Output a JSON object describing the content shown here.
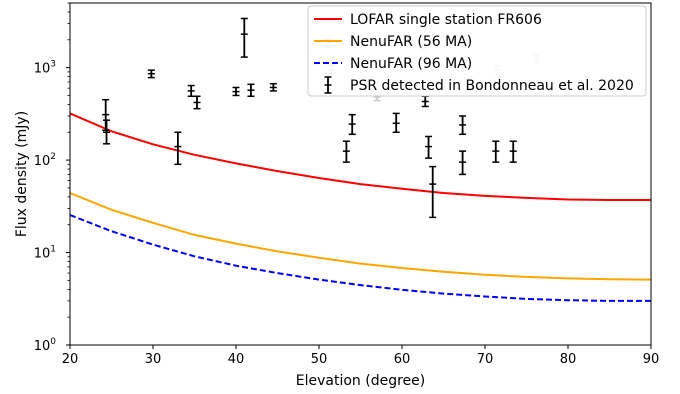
{
  "chart_data": {
    "type": "line",
    "xlabel": "Elevation (degree)",
    "ylabel": "Flux density (mJy)",
    "xlim": [
      20,
      90
    ],
    "ylim": [
      1,
      5000
    ],
    "yscale": "log",
    "x_ticks": [
      "20",
      "30",
      "40",
      "50",
      "60",
      "70",
      "80",
      "90"
    ],
    "y_ticks": [
      {
        "base": "10",
        "exp": "0",
        "value": 1
      },
      {
        "base": "10",
        "exp": "1",
        "value": 10
      },
      {
        "base": "10",
        "exp": "2",
        "value": 100
      },
      {
        "base": "10",
        "exp": "3",
        "value": 1000
      }
    ],
    "legend_position": "top-right",
    "series": [
      {
        "name": "LOFAR single station FR606",
        "color": "#ff0000",
        "style": "solid",
        "x": [
          20,
          25,
          30,
          35,
          40,
          45,
          50,
          55,
          60,
          65,
          70,
          75,
          80,
          85,
          90
        ],
        "y": [
          320,
          205,
          148,
          114,
          92,
          76,
          64,
          55,
          49,
          44,
          41,
          39,
          37.5,
          37,
          37
        ]
      },
      {
        "name": "NenuFAR (56 MA)",
        "color": "#ffa500",
        "style": "solid",
        "x": [
          20,
          25,
          30,
          35,
          40,
          45,
          50,
          55,
          60,
          65,
          70,
          75,
          80,
          85,
          90
        ],
        "y": [
          44,
          29,
          21,
          15.5,
          12.5,
          10.3,
          8.8,
          7.6,
          6.8,
          6.2,
          5.75,
          5.45,
          5.25,
          5.15,
          5.1
        ]
      },
      {
        "name": "NenuFAR (96 MA)",
        "color": "#0000ff",
        "style": "dashed",
        "x": [
          20,
          25,
          30,
          35,
          40,
          45,
          50,
          55,
          60,
          65,
          70,
          75,
          80,
          85,
          90
        ],
        "y": [
          25.5,
          17,
          12.2,
          9.1,
          7.2,
          6.0,
          5.1,
          4.45,
          3.95,
          3.6,
          3.35,
          3.15,
          3.05,
          3.0,
          3.0
        ]
      }
    ],
    "psr_label": "PSR detected in Bondonneau et al. 2020",
    "psr_color": "#000000",
    "psr_points": [
      {
        "x": 24.3,
        "y": 310,
        "lo": 210,
        "hi": 450
      },
      {
        "x": 24.4,
        "y": 200,
        "lo": 150,
        "hi": 270
      },
      {
        "x": 29.8,
        "y": 860,
        "lo": 780,
        "hi": 940
      },
      {
        "x": 33.0,
        "y": 140,
        "lo": 90,
        "hi": 200
      },
      {
        "x": 34.6,
        "y": 560,
        "lo": 490,
        "hi": 640
      },
      {
        "x": 35.3,
        "y": 420,
        "lo": 360,
        "hi": 490
      },
      {
        "x": 40.0,
        "y": 550,
        "lo": 500,
        "hi": 610
      },
      {
        "x": 41.0,
        "y": 2300,
        "lo": 1300,
        "hi": 3400
      },
      {
        "x": 41.8,
        "y": 570,
        "lo": 490,
        "hi": 660
      },
      {
        "x": 44.5,
        "y": 610,
        "lo": 560,
        "hi": 670
      },
      {
        "x": 53.3,
        "y": 125,
        "lo": 95,
        "hi": 160
      },
      {
        "x": 54.0,
        "y": 245,
        "lo": 190,
        "hi": 310
      },
      {
        "x": 59.3,
        "y": 250,
        "lo": 200,
        "hi": 320
      },
      {
        "x": 62.8,
        "y": 430,
        "lo": 380,
        "hi": 490
      },
      {
        "x": 63.2,
        "y": 140,
        "lo": 105,
        "hi": 180
      },
      {
        "x": 63.7,
        "y": 55,
        "lo": 24,
        "hi": 85
      },
      {
        "x": 67.3,
        "y": 240,
        "lo": 190,
        "hi": 300
      },
      {
        "x": 67.3,
        "y": 95,
        "lo": 70,
        "hi": 125
      },
      {
        "x": 71.3,
        "y": 125,
        "lo": 95,
        "hi": 160
      },
      {
        "x": 73.4,
        "y": 125,
        "lo": 95,
        "hi": 160
      }
    ],
    "grey_points": [
      {
        "x": 51.0,
        "y": 1850,
        "lo": 1650,
        "hi": 2050
      },
      {
        "x": 51.5,
        "y": 950,
        "lo": 850,
        "hi": 1050
      },
      {
        "x": 57.0,
        "y": 480,
        "lo": 440,
        "hi": 520
      },
      {
        "x": 62.5,
        "y": 1650,
        "lo": 1500,
        "hi": 1800
      },
      {
        "x": 71.5,
        "y": 950,
        "lo": 850,
        "hi": 1050
      },
      {
        "x": 76.2,
        "y": 1250,
        "lo": 1130,
        "hi": 1380
      }
    ],
    "grey_color": "#c8c8c8"
  }
}
